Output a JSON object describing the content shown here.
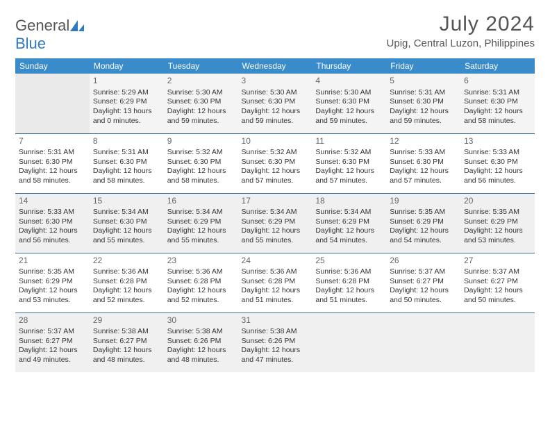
{
  "brand": {
    "word1": "General",
    "word2": "Blue"
  },
  "title": "July 2024",
  "location": "Upig, Central Luzon, Philippines",
  "dayHeaders": [
    "Sunday",
    "Monday",
    "Tuesday",
    "Wednesday",
    "Thursday",
    "Friday",
    "Saturday"
  ],
  "colors": {
    "headerBg": "#3a8bc9",
    "headerText": "#ffffff",
    "rowBorder": "#3a6b96",
    "altRowBg": "#f0f0f0",
    "firstRowBg": "#eaeaea",
    "firstRowData": "#f4f4f4",
    "logoBlue": "#2f7ac0"
  },
  "fonts": {
    "title": 30,
    "subtitle": 15,
    "dayHeader": 12,
    "cell": 10.5,
    "daynum": 12
  },
  "weeks": [
    [
      {
        "num": "",
        "lines": []
      },
      {
        "num": "1",
        "lines": [
          "Sunrise: 5:29 AM",
          "Sunset: 6:29 PM",
          "Daylight: 13 hours and 0 minutes."
        ]
      },
      {
        "num": "2",
        "lines": [
          "Sunrise: 5:30 AM",
          "Sunset: 6:30 PM",
          "Daylight: 12 hours and 59 minutes."
        ]
      },
      {
        "num": "3",
        "lines": [
          "Sunrise: 5:30 AM",
          "Sunset: 6:30 PM",
          "Daylight: 12 hours and 59 minutes."
        ]
      },
      {
        "num": "4",
        "lines": [
          "Sunrise: 5:30 AM",
          "Sunset: 6:30 PM",
          "Daylight: 12 hours and 59 minutes."
        ]
      },
      {
        "num": "5",
        "lines": [
          "Sunrise: 5:31 AM",
          "Sunset: 6:30 PM",
          "Daylight: 12 hours and 59 minutes."
        ]
      },
      {
        "num": "6",
        "lines": [
          "Sunrise: 5:31 AM",
          "Sunset: 6:30 PM",
          "Daylight: 12 hours and 58 minutes."
        ]
      }
    ],
    [
      {
        "num": "7",
        "lines": [
          "Sunrise: 5:31 AM",
          "Sunset: 6:30 PM",
          "Daylight: 12 hours and 58 minutes."
        ]
      },
      {
        "num": "8",
        "lines": [
          "Sunrise: 5:31 AM",
          "Sunset: 6:30 PM",
          "Daylight: 12 hours and 58 minutes."
        ]
      },
      {
        "num": "9",
        "lines": [
          "Sunrise: 5:32 AM",
          "Sunset: 6:30 PM",
          "Daylight: 12 hours and 58 minutes."
        ]
      },
      {
        "num": "10",
        "lines": [
          "Sunrise: 5:32 AM",
          "Sunset: 6:30 PM",
          "Daylight: 12 hours and 57 minutes."
        ]
      },
      {
        "num": "11",
        "lines": [
          "Sunrise: 5:32 AM",
          "Sunset: 6:30 PM",
          "Daylight: 12 hours and 57 minutes."
        ]
      },
      {
        "num": "12",
        "lines": [
          "Sunrise: 5:33 AM",
          "Sunset: 6:30 PM",
          "Daylight: 12 hours and 57 minutes."
        ]
      },
      {
        "num": "13",
        "lines": [
          "Sunrise: 5:33 AM",
          "Sunset: 6:30 PM",
          "Daylight: 12 hours and 56 minutes."
        ]
      }
    ],
    [
      {
        "num": "14",
        "lines": [
          "Sunrise: 5:33 AM",
          "Sunset: 6:30 PM",
          "Daylight: 12 hours and 56 minutes."
        ]
      },
      {
        "num": "15",
        "lines": [
          "Sunrise: 5:34 AM",
          "Sunset: 6:30 PM",
          "Daylight: 12 hours and 55 minutes."
        ]
      },
      {
        "num": "16",
        "lines": [
          "Sunrise: 5:34 AM",
          "Sunset: 6:29 PM",
          "Daylight: 12 hours and 55 minutes."
        ]
      },
      {
        "num": "17",
        "lines": [
          "Sunrise: 5:34 AM",
          "Sunset: 6:29 PM",
          "Daylight: 12 hours and 55 minutes."
        ]
      },
      {
        "num": "18",
        "lines": [
          "Sunrise: 5:34 AM",
          "Sunset: 6:29 PM",
          "Daylight: 12 hours and 54 minutes."
        ]
      },
      {
        "num": "19",
        "lines": [
          "Sunrise: 5:35 AM",
          "Sunset: 6:29 PM",
          "Daylight: 12 hours and 54 minutes."
        ]
      },
      {
        "num": "20",
        "lines": [
          "Sunrise: 5:35 AM",
          "Sunset: 6:29 PM",
          "Daylight: 12 hours and 53 minutes."
        ]
      }
    ],
    [
      {
        "num": "21",
        "lines": [
          "Sunrise: 5:35 AM",
          "Sunset: 6:29 PM",
          "Daylight: 12 hours and 53 minutes."
        ]
      },
      {
        "num": "22",
        "lines": [
          "Sunrise: 5:36 AM",
          "Sunset: 6:28 PM",
          "Daylight: 12 hours and 52 minutes."
        ]
      },
      {
        "num": "23",
        "lines": [
          "Sunrise: 5:36 AM",
          "Sunset: 6:28 PM",
          "Daylight: 12 hours and 52 minutes."
        ]
      },
      {
        "num": "24",
        "lines": [
          "Sunrise: 5:36 AM",
          "Sunset: 6:28 PM",
          "Daylight: 12 hours and 51 minutes."
        ]
      },
      {
        "num": "25",
        "lines": [
          "Sunrise: 5:36 AM",
          "Sunset: 6:28 PM",
          "Daylight: 12 hours and 51 minutes."
        ]
      },
      {
        "num": "26",
        "lines": [
          "Sunrise: 5:37 AM",
          "Sunset: 6:27 PM",
          "Daylight: 12 hours and 50 minutes."
        ]
      },
      {
        "num": "27",
        "lines": [
          "Sunrise: 5:37 AM",
          "Sunset: 6:27 PM",
          "Daylight: 12 hours and 50 minutes."
        ]
      }
    ],
    [
      {
        "num": "28",
        "lines": [
          "Sunrise: 5:37 AM",
          "Sunset: 6:27 PM",
          "Daylight: 12 hours and 49 minutes."
        ]
      },
      {
        "num": "29",
        "lines": [
          "Sunrise: 5:38 AM",
          "Sunset: 6:27 PM",
          "Daylight: 12 hours and 48 minutes."
        ]
      },
      {
        "num": "30",
        "lines": [
          "Sunrise: 5:38 AM",
          "Sunset: 6:26 PM",
          "Daylight: 12 hours and 48 minutes."
        ]
      },
      {
        "num": "31",
        "lines": [
          "Sunrise: 5:38 AM",
          "Sunset: 6:26 PM",
          "Daylight: 12 hours and 47 minutes."
        ]
      },
      {
        "num": "",
        "lines": []
      },
      {
        "num": "",
        "lines": []
      },
      {
        "num": "",
        "lines": []
      }
    ]
  ]
}
